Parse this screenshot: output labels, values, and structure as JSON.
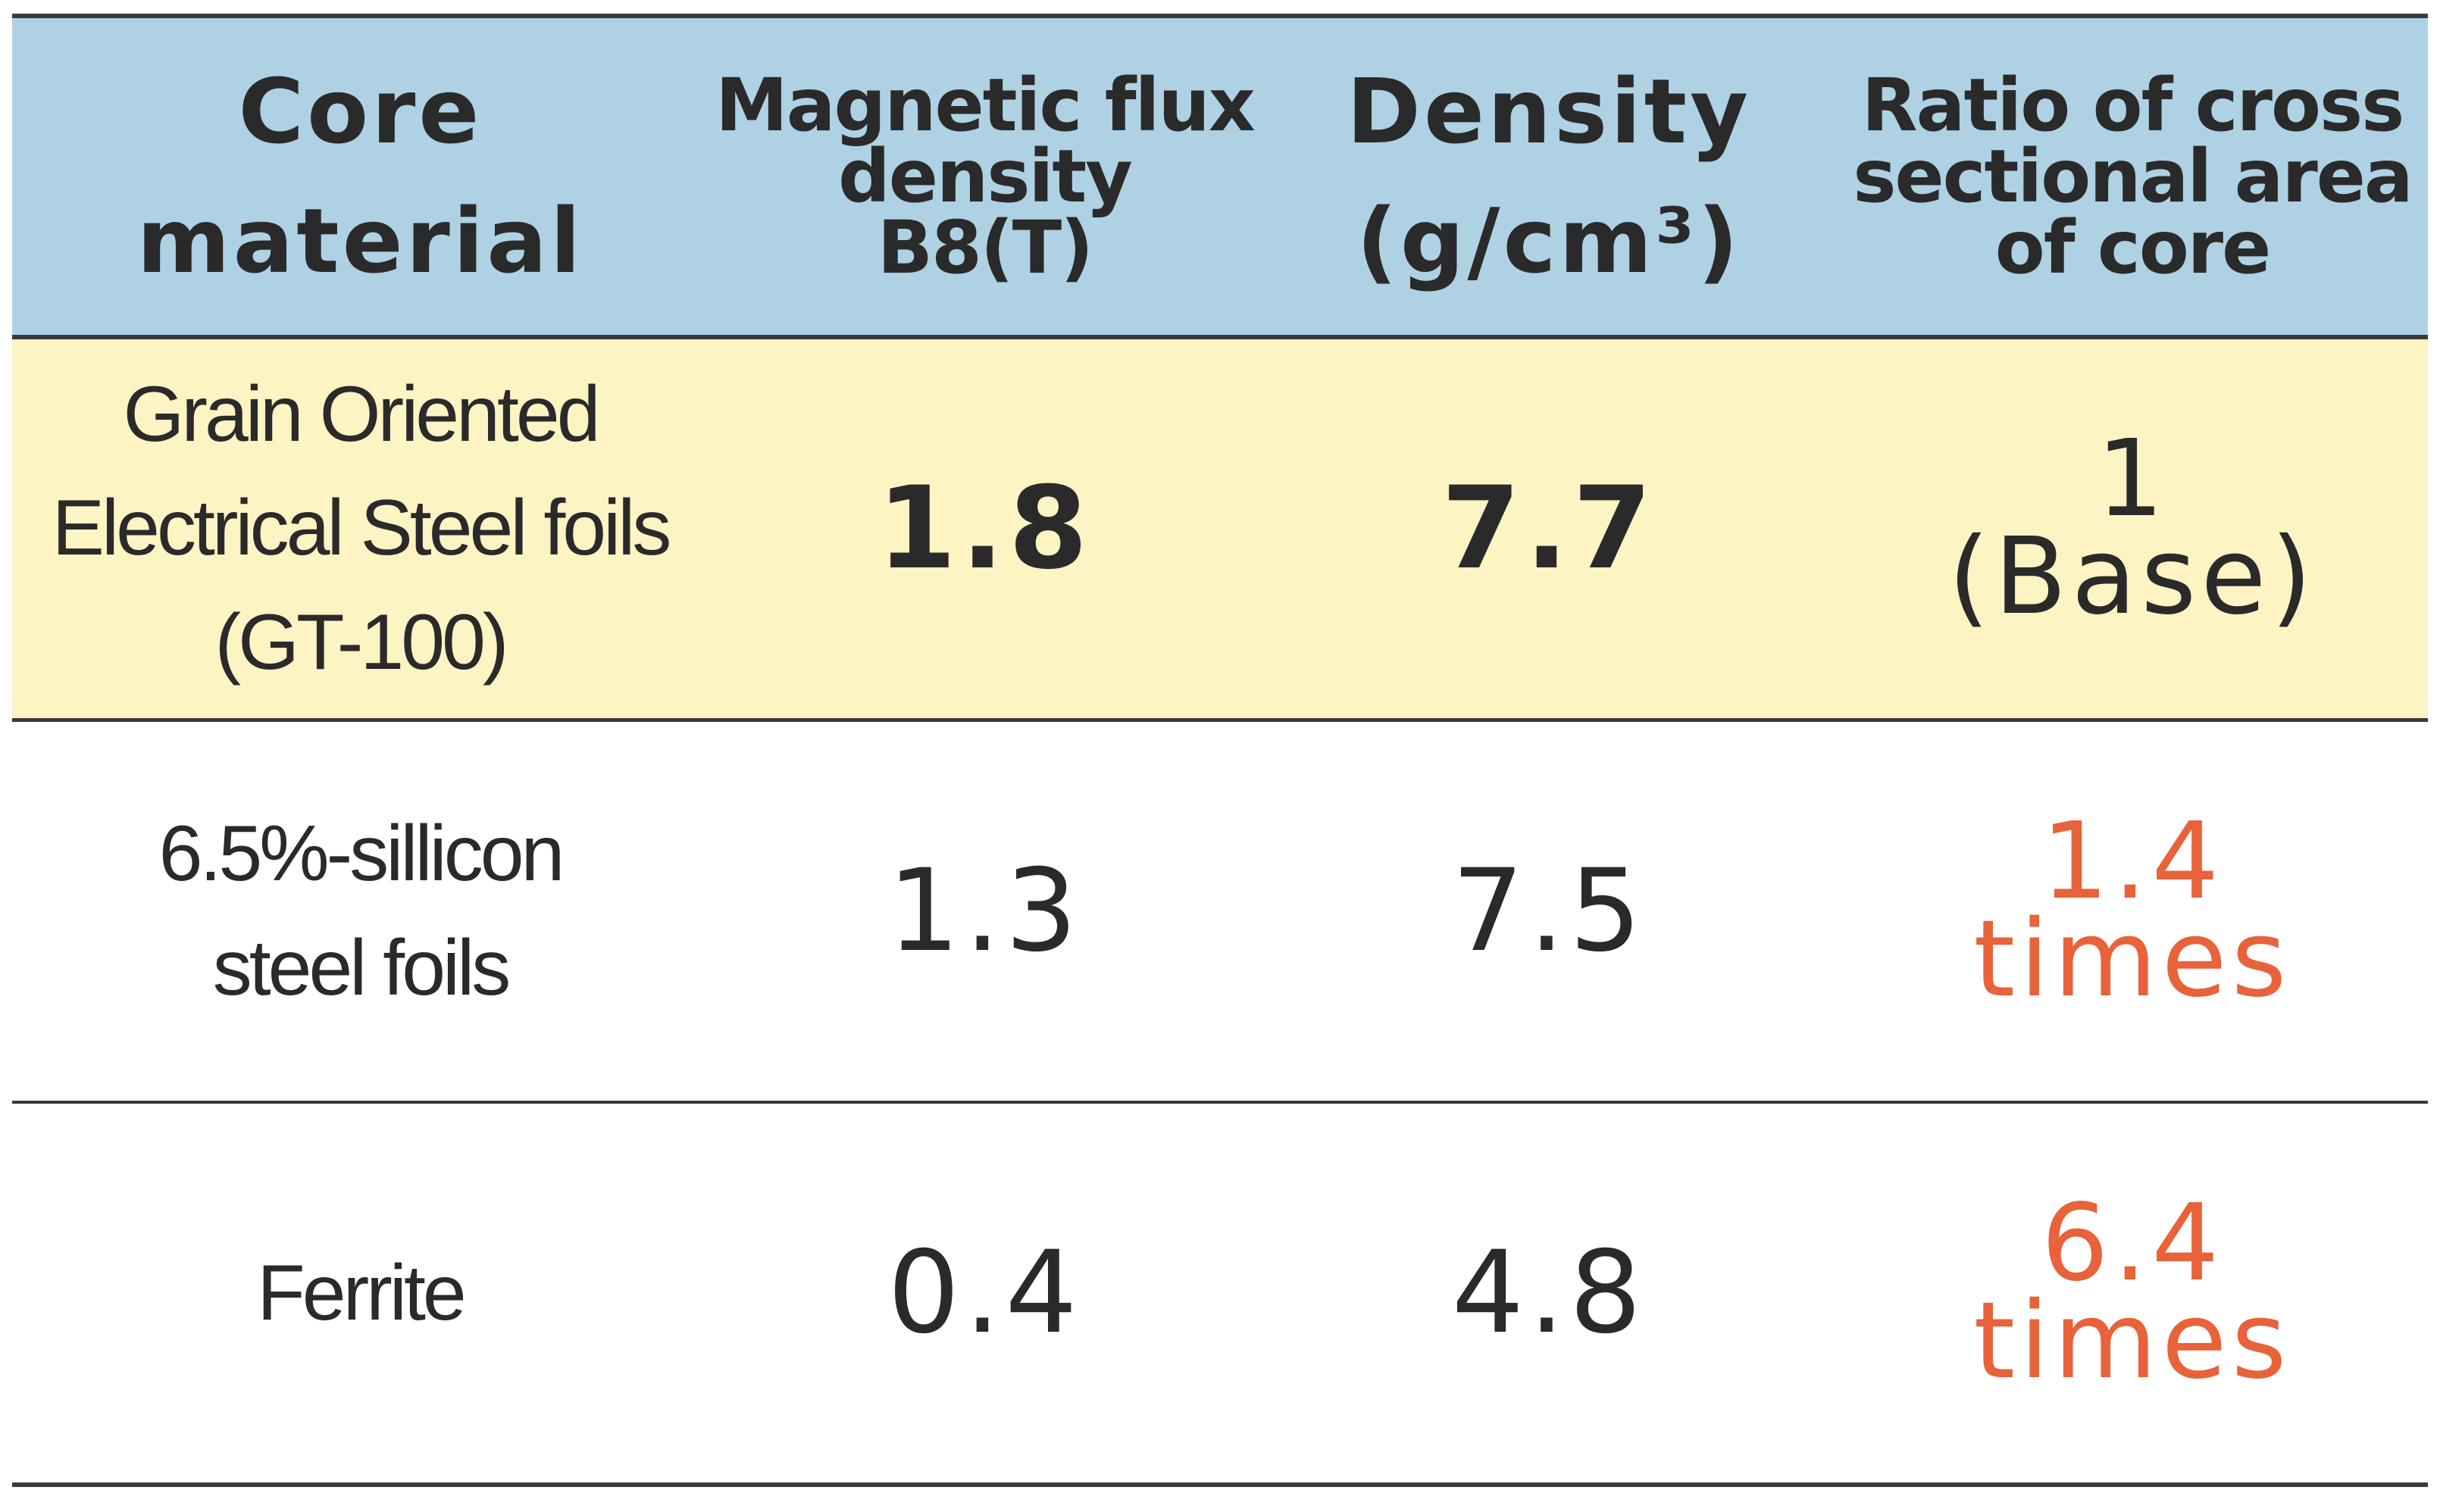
{
  "table": {
    "header": [
      "Core\nmaterial",
      "Magnetic flux\ndensity\nB8(T)",
      "Density\n(g/cm³)",
      "Ratio of cross\nsectional area\nof core"
    ],
    "rows": [
      [
        "Grain Oriented\nElectrical Steel foils\n(GT-100)",
        "1.8",
        "7.7",
        "1\n(Base)"
      ],
      [
        "6.5%-sillicon\nsteel foils",
        "1.3",
        "7.5",
        "1.4\ntimes"
      ],
      [
        "Ferrite",
        "0.4",
        "4.8",
        "6.4\ntimes"
      ]
    ]
  }
}
